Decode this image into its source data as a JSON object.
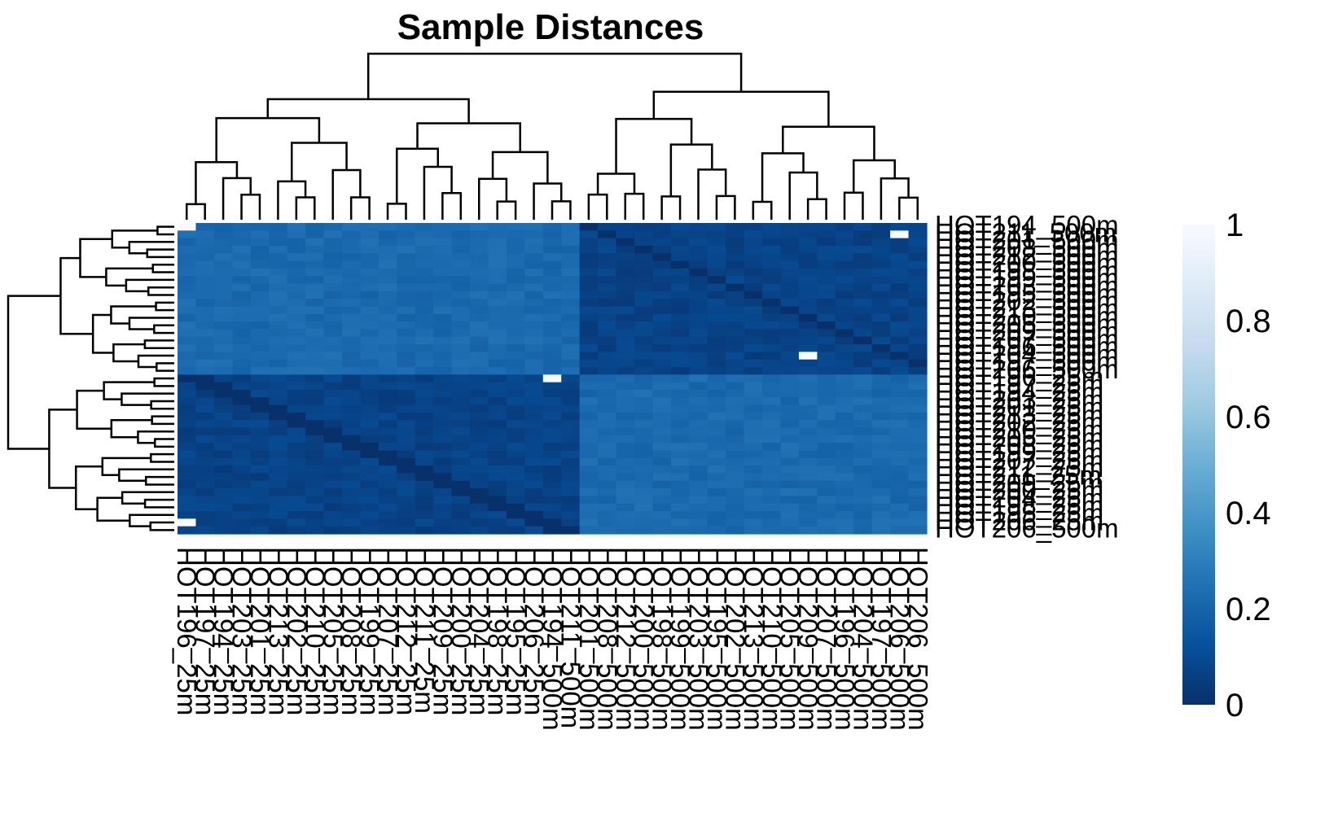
{
  "chart_data": {
    "type": "heatmap",
    "title": "Sample Distances",
    "xlabel": "",
    "ylabel": "",
    "colorbar": {
      "range": [
        0,
        1
      ],
      "ticks": [
        "0",
        "0.2",
        "0.4",
        "0.6",
        "0.8",
        "1"
      ],
      "colors": [
        "#08306b",
        "#08519c",
        "#2171b5",
        "#4292c6",
        "#6baed6",
        "#9ecae1",
        "#c6dbef",
        "#deebf7",
        "#f7fbff"
      ]
    },
    "row_labels": [
      "HOT194_500m",
      "HOT211_500m",
      "HOT201_500m",
      "HOT208_500m",
      "HOT212_500m",
      "HOT200_500m",
      "HOT198_500m",
      "HOT199_500m",
      "HOT203_500m",
      "HOT195_500m",
      "HOT202_500m",
      "HOT213_500m",
      "HOT210_500m",
      "HOT205_500m",
      "HOT209_500m",
      "HOT207_500m",
      "HOT196_500m",
      "HOT204_500m",
      "HOT197_500m",
      "HOT206_500m",
      "HOT196_25m",
      "HOT197_25m",
      "HOT194_25m",
      "HOT203_25m",
      "HOT201_25m",
      "HOT213_25m",
      "HOT202_25m",
      "HOT210_25m",
      "HOT205_25m",
      "HOT208_25m",
      "HOT199_25m",
      "HOT207_25m",
      "HOT212_25m",
      "HOT211_25m",
      "HOT209_25m",
      "HOT200_25m",
      "HOT204_25m",
      "HOT198_25m",
      "HOT195_25m",
      "HOT206_25m",
      "HOT206_500m"
    ],
    "col_labels": [
      "HOT196_25m",
      "HOT197_25m",
      "HOT194_25m",
      "HOT203_25m",
      "HOT201_25m",
      "HOT213_25m",
      "HOT202_25m",
      "HOT210_25m",
      "HOT205_25m",
      "HOT208_25m",
      "HOT199_25m",
      "HOT207_25m",
      "HOT212_25m",
      "HOT211_25m",
      "HOT209_25m",
      "HOT200_25m",
      "HOT204_25m",
      "HOT198_25m",
      "HOT195_25m",
      "HOT206_25m",
      "HOT194_500m",
      "HOT211_500m",
      "HOT201_500m",
      "HOT208_500m",
      "HOT212_500m",
      "HOT200_500m",
      "HOT198_500m",
      "HOT199_500m",
      "HOT203_500m",
      "HOT195_500m",
      "HOT202_500m",
      "HOT213_500m",
      "HOT210_500m",
      "HOT205_500m",
      "HOT209_500m",
      "HOT207_500m",
      "HOT196_500m",
      "HOT204_500m",
      "HOT197_500m",
      "HOT206_500m",
      "HOT206_500m"
    ],
    "clusters": {
      "group_a_rows": 20,
      "group_b_cols": 22
    },
    "values_summary": {
      "diagonal": 0.0,
      "within_group": 0.07,
      "between_groups": 0.22,
      "outliers": [
        {
          "row": "HOT194_500m",
          "col": "HOT196_25m",
          "value": 1.0
        },
        {
          "row": "HOT211_500m",
          "col": "HOT206_500m",
          "value": 1.0
        },
        {
          "row": "HOT204_500m",
          "col": "HOT209_500m",
          "value": 1.0
        },
        {
          "row": "HOT196_25m",
          "col": "HOT194_500m",
          "value": 1.0
        },
        {
          "row": "HOT206_25m",
          "col": "HOT196_25m",
          "value": 1.0
        }
      ]
    }
  }
}
